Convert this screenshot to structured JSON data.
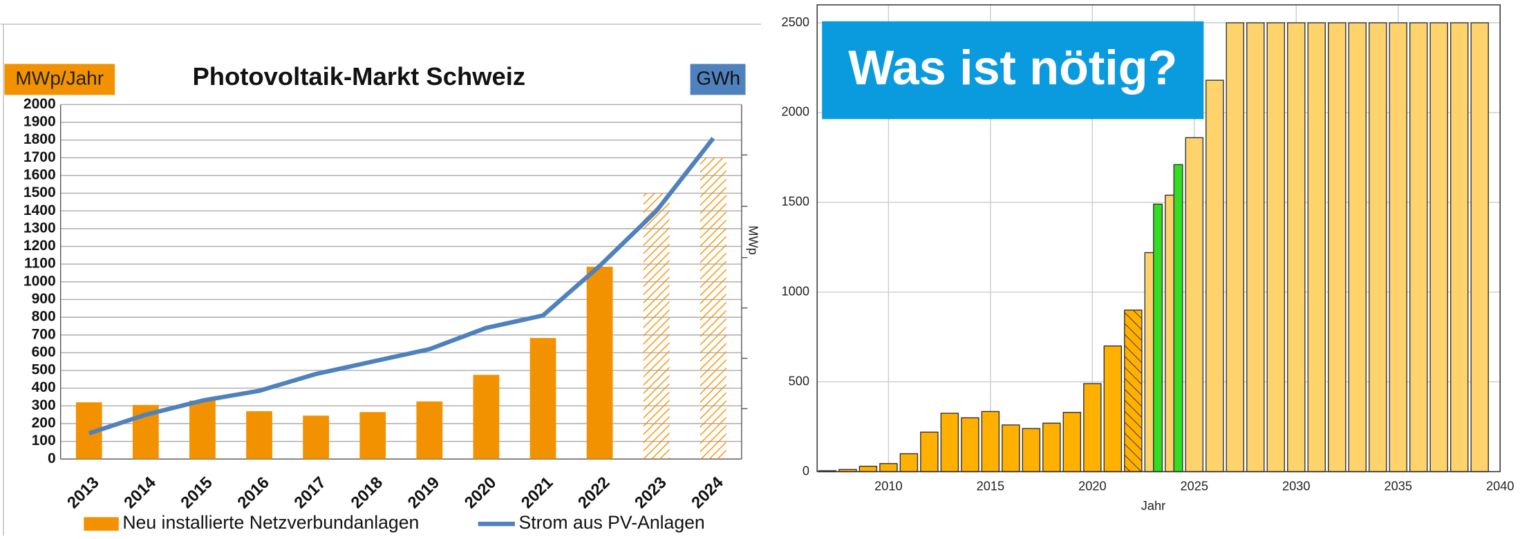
{
  "chart_data": [
    {
      "type": "bar",
      "title": "Photovoltaik-Markt Schweiz",
      "y_label": "MWp/Jahr",
      "y2_label": "GWh",
      "categories": [
        "2013",
        "2014",
        "2015",
        "2016",
        "2017",
        "2018",
        "2019",
        "2020",
        "2021",
        "2022",
        "2023",
        "2024"
      ],
      "series": [
        {
          "name": "Neu installierte Netzverbundanlagen",
          "type": "bar",
          "color": "#f39200",
          "values": [
            320,
            305,
            330,
            270,
            245,
            265,
            325,
            475,
            683,
            1085,
            1500,
            1700
          ],
          "hatch": [
            false,
            false,
            false,
            false,
            false,
            false,
            false,
            false,
            false,
            false,
            true,
            true
          ]
        },
        {
          "name": "Strom aus PV-Anlagen",
          "type": "line",
          "color": "#4f81bd",
          "values": [
            145,
            250,
            330,
            385,
            480,
            550,
            620,
            740,
            810,
            1090,
            1400,
            1810
          ]
        }
      ],
      "ylim": [
        0,
        2000
      ],
      "yticks": [
        0,
        100,
        200,
        300,
        400,
        500,
        600,
        700,
        800,
        900,
        1000,
        1100,
        1200,
        1300,
        1400,
        1500,
        1600,
        1700,
        1800,
        1900,
        2000
      ],
      "grid": true,
      "legend": "bottom"
    },
    {
      "type": "bar",
      "title": "Was ist nötig?",
      "x_label": "Jahr",
      "y_label": "MWp",
      "x": [
        2007,
        2008,
        2009,
        2010,
        2011,
        2012,
        2013,
        2014,
        2015,
        2016,
        2017,
        2018,
        2019,
        2020,
        2021,
        2022,
        2023,
        2024,
        2025,
        2026,
        2027,
        2028,
        2029,
        2030,
        2031,
        2032,
        2033,
        2034,
        2035,
        2036,
        2037,
        2038,
        2039
      ],
      "series": [
        {
          "color": "#ffb000",
          "hatch": false,
          "values": [
            5,
            12,
            30,
            45,
            100,
            220,
            325,
            300,
            335,
            260,
            240,
            270,
            330,
            490,
            700,
            null,
            null,
            null,
            null,
            null,
            null,
            null,
            null,
            null,
            null,
            null,
            null,
            null,
            null,
            null,
            null,
            null,
            null
          ]
        },
        {
          "color": "#ffb000",
          "hatch": true,
          "values": [
            null,
            null,
            null,
            null,
            null,
            null,
            null,
            null,
            null,
            null,
            null,
            null,
            null,
            null,
            null,
            900,
            null,
            null,
            null,
            null,
            null,
            null,
            null,
            null,
            null,
            null,
            null,
            null,
            null,
            null,
            null,
            null,
            null
          ]
        },
        {
          "color": "#ffd36b",
          "hatch": false,
          "values": [
            null,
            null,
            null,
            null,
            null,
            null,
            null,
            null,
            null,
            null,
            null,
            null,
            null,
            null,
            null,
            null,
            1220,
            1540,
            1860,
            2180,
            2500,
            2500,
            2500,
            2500,
            2500,
            2500,
            2500,
            2500,
            2500,
            2500,
            2500,
            2500,
            2500
          ]
        },
        {
          "color": "#33dd22",
          "hatch": false,
          "values": [
            null,
            null,
            null,
            null,
            null,
            null,
            null,
            null,
            null,
            null,
            null,
            null,
            null,
            null,
            null,
            null,
            1490,
            1710,
            null,
            null,
            null,
            null,
            null,
            null,
            null,
            null,
            null,
            null,
            null,
            null,
            null,
            null,
            null
          ]
        }
      ],
      "xlim": [
        2006.5,
        2040
      ],
      "xticks": [
        2010,
        2015,
        2020,
        2025,
        2030,
        2035,
        2040
      ],
      "ylim": [
        0,
        2600
      ],
      "yticks": [
        0,
        500,
        1000,
        1500,
        2000,
        2500
      ],
      "grid": true
    }
  ]
}
